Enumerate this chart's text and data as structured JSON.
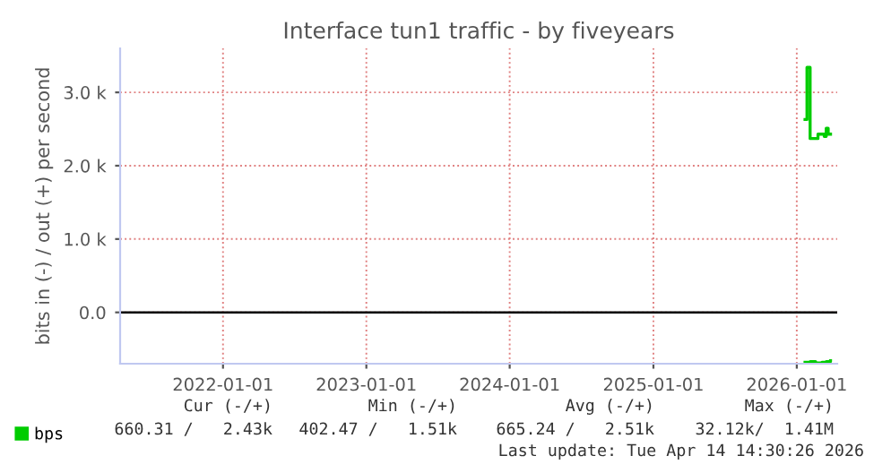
{
  "chart_data": {
    "type": "step",
    "title": "Interface tun1 traffic - by fiveyears",
    "ylabel": "bits in (-) / out (+) per second",
    "xlim": [
      "2021-04-14",
      "2026-04-14"
    ],
    "xticks": [
      {
        "value": "2022-01-01",
        "label": "2022-01-01"
      },
      {
        "value": "2023-01-01",
        "label": "2023-01-01"
      },
      {
        "value": "2024-01-01",
        "label": "2024-01-01"
      },
      {
        "value": "2025-01-01",
        "label": "2025-01-01"
      },
      {
        "value": "2026-01-01",
        "label": "2026-01-01"
      }
    ],
    "ylim": [
      -700,
      3600
    ],
    "yticks": [
      {
        "value": 0,
        "label": "0.0"
      },
      {
        "value": 1000,
        "label": "1.0 k"
      },
      {
        "value": 2000,
        "label": "2.0 k"
      },
      {
        "value": 3000,
        "label": "3.0 k"
      }
    ],
    "grid": true,
    "legend": "bottom left",
    "ref_lines": [
      {
        "axis": "y",
        "value": 0,
        "color": "#000000"
      }
    ],
    "series": [
      {
        "name": "bps",
        "color": "#00cc00",
        "x": [
          "2026-01-22",
          "2026-01-27",
          "2026-02-04",
          "2026-02-18",
          "2026-02-24",
          "2026-03-06",
          "2026-03-12",
          "2026-03-17",
          "2026-03-22",
          "2026-03-28"
        ],
        "values": [
          2630,
          3340,
          2370,
          2370,
          2430,
          2430,
          2400,
          2510,
          2430,
          2430
        ]
      },
      {
        "color": "#00cc00",
        "x": [
          "2026-01-22",
          "2026-02-04",
          "2026-02-18",
          "2026-03-06",
          "2026-03-17",
          "2026-03-28"
        ],
        "values": [
          -680,
          -670,
          -690,
          -680,
          -670,
          -660
        ]
      }
    ],
    "annotations": [
      "Cur (-/+)",
      "Min (-/+)",
      "Avg (-/+)",
      "Max (-/+)",
      "660.31 /   2.43k",
      "402.47 /   1.51k",
      "665.24 /   2.51k",
      "32.12k/  1.41M",
      "Last update: Tue Apr 14 14:30:26 2026"
    ]
  }
}
